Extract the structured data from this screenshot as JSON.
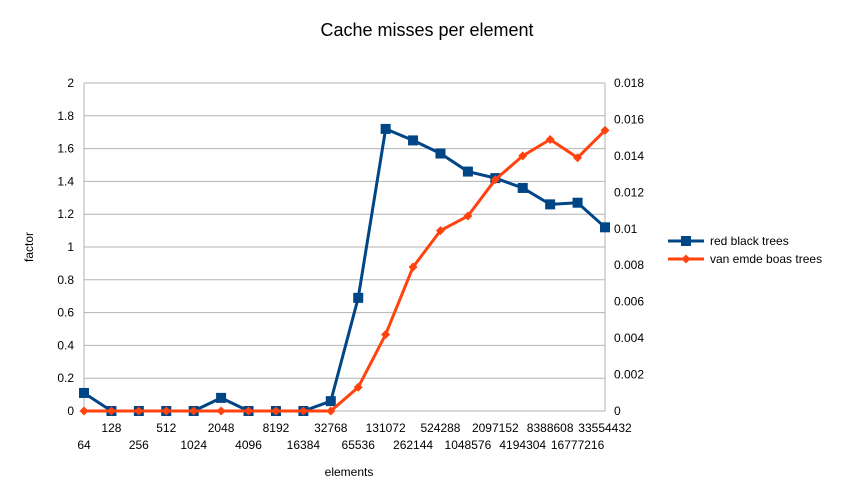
{
  "chart_data": {
    "type": "line",
    "title": "Cache misses per element",
    "xlabel": "elements",
    "ylabel": "factor",
    "ylim": [
      0,
      2
    ],
    "y_ticks": [
      "0",
      "0.2",
      "0.4",
      "0.6",
      "0.8",
      "1",
      "1.2",
      "1.4",
      "1.6",
      "1.8",
      "2"
    ],
    "y2lim": [
      0,
      0.018
    ],
    "y2_ticks": [
      "0",
      "0.002",
      "0.004",
      "0.006",
      "0.008",
      "0.01",
      "0.012",
      "0.014",
      "0.016",
      "0.018"
    ],
    "grid": true,
    "legend_position": "right",
    "categories": [
      "64",
      "128",
      "256",
      "512",
      "1024",
      "2048",
      "4096",
      "8192",
      "16384",
      "32768",
      "65536",
      "131072",
      "262144",
      "524288",
      "1048576",
      "2097152",
      "4194304",
      "8388608",
      "16777216",
      "33554432"
    ],
    "series": [
      {
        "name": "red black trees",
        "axis": "left",
        "color": "#004586",
        "marker": "square",
        "values": [
          0.11,
          0.0,
          0.0,
          0.0,
          0.0,
          0.08,
          0.0,
          0.0,
          0.0,
          0.06,
          0.69,
          1.72,
          1.65,
          1.57,
          1.46,
          1.42,
          1.36,
          1.26,
          1.27,
          1.12
        ]
      },
      {
        "name": "van emde boas trees",
        "axis": "right",
        "color": "#ff420e",
        "marker": "diamond",
        "values": [
          0.0,
          0.0,
          0.0,
          0.0,
          0.0,
          0.0,
          0.0,
          0.0,
          0.0,
          0.0,
          0.0013,
          0.0042,
          0.0079,
          0.0099,
          0.0107,
          0.0127,
          0.014,
          0.0149,
          0.0139,
          0.0154
        ]
      }
    ]
  }
}
